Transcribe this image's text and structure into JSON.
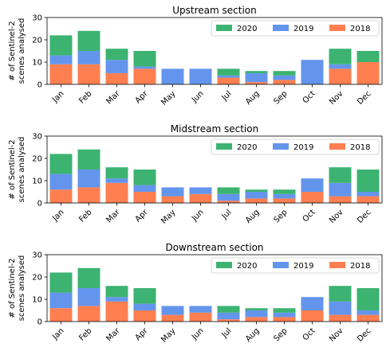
{
  "colors": {
    "2020": "#3cb371",
    "2019": "#6495ed",
    "2018": "#ff7f50"
  },
  "chart_data": [
    {
      "type": "bar",
      "stacked": true,
      "title": "Upstream section",
      "ylabel": [
        "# of Sentinel-2",
        "scenes analysed"
      ],
      "ylim": [
        0,
        30
      ],
      "yticks": [
        0,
        10,
        20,
        30
      ],
      "grid": false,
      "legend": "top-right",
      "categories": [
        "Jan",
        "Feb",
        "Mar",
        "Apr",
        "May",
        "Jun",
        "Jul",
        "Aug",
        "Sep",
        "Oct",
        "Nov",
        "Dec"
      ],
      "series": [
        {
          "name": "2020",
          "values": [
            9,
            9,
            5,
            7,
            0,
            0,
            3,
            1,
            2,
            0,
            7,
            5
          ]
        },
        {
          "name": "2019",
          "values": [
            4,
            6,
            6,
            1,
            7,
            7,
            1,
            4,
            2,
            11,
            2,
            0
          ]
        },
        {
          "name": "2018",
          "values": [
            9,
            9,
            5,
            7,
            0,
            0,
            3,
            1,
            2,
            0,
            7,
            10
          ]
        }
      ],
      "stack_order": [
        "2018",
        "2019",
        "2020"
      ]
    },
    {
      "type": "bar",
      "stacked": true,
      "title": "Midstream section",
      "ylabel": [
        "# of Sentinel-2",
        "scenes analysed"
      ],
      "ylim": [
        0,
        30
      ],
      "yticks": [
        0,
        10,
        20,
        30
      ],
      "grid": false,
      "legend": "top-right",
      "categories": [
        "Jan",
        "Feb",
        "Mar",
        "Apr",
        "May",
        "Jun",
        "Jul",
        "Aug",
        "Sep",
        "Oct",
        "Nov",
        "Dec"
      ],
      "series": [
        {
          "name": "2020",
          "values": [
            9,
            9,
            5,
            7,
            0,
            0,
            3,
            1,
            2,
            0,
            7,
            10
          ]
        },
        {
          "name": "2019",
          "values": [
            7,
            8,
            2,
            3,
            4,
            3,
            3,
            3,
            2,
            6,
            6,
            2
          ]
        },
        {
          "name": "2018",
          "values": [
            6,
            7,
            9,
            5,
            3,
            4,
            1,
            2,
            2,
            5,
            3,
            3
          ]
        }
      ],
      "stack_order": [
        "2018",
        "2019",
        "2020"
      ]
    },
    {
      "type": "bar",
      "stacked": true,
      "title": "Downstream section",
      "ylabel": [
        "# of Sentinel-2",
        "scenes analysed"
      ],
      "ylim": [
        0,
        30
      ],
      "yticks": [
        0,
        10,
        20,
        30
      ],
      "grid": false,
      "legend": "top-right",
      "categories": [
        "Jan",
        "Feb",
        "Mar",
        "Apr",
        "May",
        "Jun",
        "Jul",
        "Aug",
        "Sep",
        "Oct",
        "Nov",
        "Dec"
      ],
      "series": [
        {
          "name": "2020",
          "values": [
            9,
            9,
            5,
            7,
            0,
            0,
            3,
            1,
            2,
            0,
            7,
            10
          ]
        },
        {
          "name": "2019",
          "values": [
            7,
            8,
            2,
            3,
            4,
            3,
            3,
            3,
            2,
            6,
            6,
            2
          ]
        },
        {
          "name": "2018",
          "values": [
            6,
            7,
            9,
            5,
            3,
            4,
            1,
            2,
            2,
            5,
            3,
            3
          ]
        }
      ],
      "stack_order": [
        "2018",
        "2019",
        "2020"
      ]
    }
  ]
}
